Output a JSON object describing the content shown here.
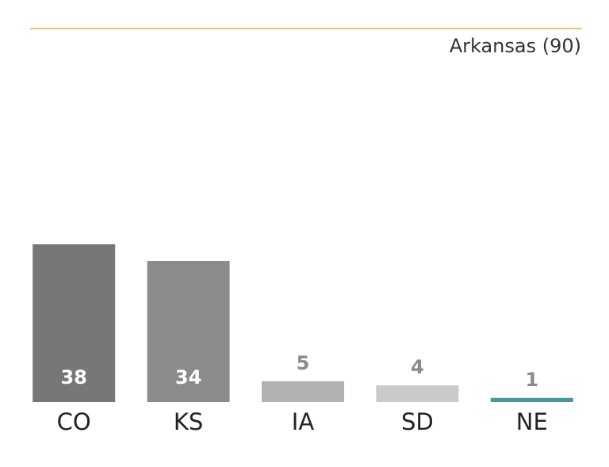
{
  "chart_data": {
    "type": "bar",
    "categories": [
      "CO",
      "KS",
      "IA",
      "SD",
      "NE"
    ],
    "values": [
      38,
      34,
      5,
      4,
      1
    ],
    "colors": [
      "#777777",
      "#8b8b8b",
      "#b2b2b2",
      "#cacaca",
      "#4b979b"
    ],
    "ylim": [
      0,
      90
    ],
    "reference": {
      "value": 90,
      "label": "Arkansas (90)",
      "color": "#f0c27f"
    }
  }
}
